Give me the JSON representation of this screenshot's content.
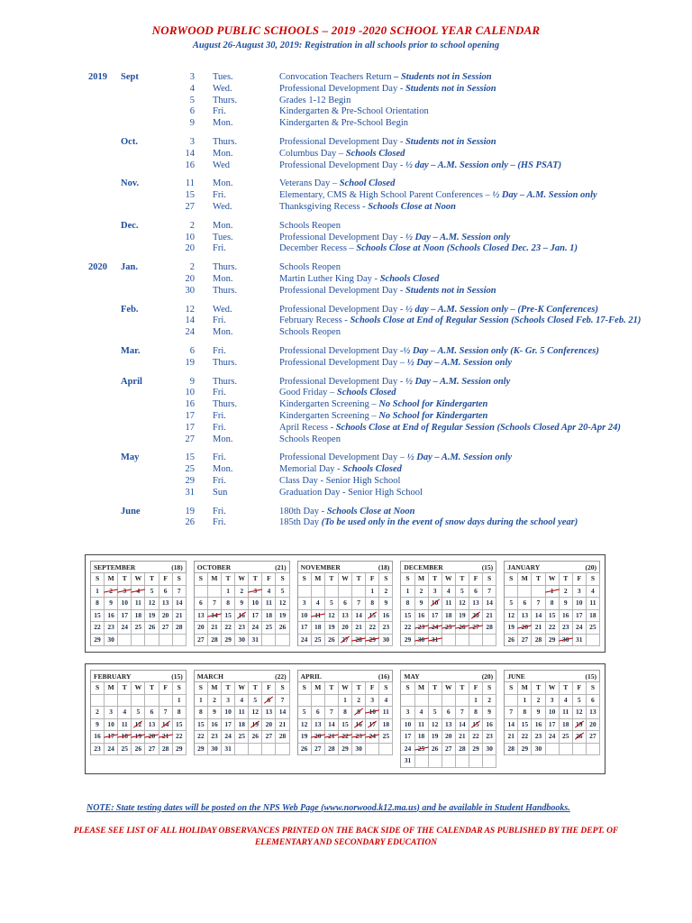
{
  "doc": {
    "title": "NORWOOD PUBLIC SCHOOLS – 2019 -2020 SCHOOL YEAR CALENDAR",
    "subtitle": "August 26-August 30, 2019:  Registration in all schools prior to school opening",
    "note": {
      "prefix": "NOTE:  State testing dates will be posted on the NPS Web Page (",
      "link": "www.norwood.k12.ma.us",
      "suffix": ") and be available in Student Handbooks."
    },
    "footer": "PLEASE SEE LIST OF ALL HOLIDAY OBSERVANCES PRINTED ON THE BACK SIDE OF THE CALENDAR AS PUBLISHED BY THE DEPT. OF ELEMENTARY AND SECONDARY EDUCATION",
    "colors": {
      "title_red": "#cc0000",
      "body_blue": "#1f4e9c",
      "mark_red": "#b30000"
    }
  },
  "schedule": [
    {
      "year": "2019",
      "month": "Sept",
      "events": [
        {
          "day": "3",
          "wd": "Tues.",
          "text": "Convocation Teachers Return ",
          "em": "– Students not in Session"
        },
        {
          "day": "4",
          "wd": "Wed.",
          "text": "Professional Development Day - ",
          "em": "Students not in Session"
        },
        {
          "day": "5",
          "wd": "Thurs.",
          "text": "Grades 1-12 Begin",
          "em": ""
        },
        {
          "day": "6",
          "wd": "Fri.",
          "text": "Kindergarten & Pre-School Orientation",
          "em": ""
        },
        {
          "day": "9",
          "wd": "Mon.",
          "text": "Kindergarten & Pre-School Begin",
          "em": ""
        }
      ]
    },
    {
      "year": "",
      "month": "Oct.",
      "events": [
        {
          "day": "3",
          "wd": "Thurs.",
          "text": "Professional Development Day - ",
          "em": "Students not in Session"
        },
        {
          "day": "14",
          "wd": "Mon.",
          "text": "Columbus Day – ",
          "em": "Schools Closed"
        },
        {
          "day": "16",
          "wd": "Wed",
          "text": "Professional Development Day - ",
          "em": "½ day – A.M. Session only – (HS PSAT)"
        }
      ]
    },
    {
      "year": "",
      "month": "Nov.",
      "events": [
        {
          "day": "11",
          "wd": "Mon.",
          "text": "Veterans Day – ",
          "em": "School Closed"
        },
        {
          "day": "15",
          "wd": "Fri.",
          "text": "Elementary, CMS & High School Parent Conferences – ",
          "em": "½ Day – A.M. Session only"
        },
        {
          "day": "27",
          "wd": "Wed.",
          "text": "Thanksgiving Recess - ",
          "em": "Schools Close at Noon"
        }
      ]
    },
    {
      "year": "",
      "month": "Dec.",
      "events": [
        {
          "day": "2",
          "wd": "Mon.",
          "text": "Schools Reopen",
          "em": ""
        },
        {
          "day": "10",
          "wd": "Tues.",
          "text": "Professional Development Day - ",
          "em": "½ Day – A.M. Session only"
        },
        {
          "day": "20",
          "wd": "Fri.",
          "text": "December Recess – ",
          "em": "Schools Close at Noon (Schools Closed Dec. 23 – Jan. 1)"
        }
      ]
    },
    {
      "year": "2020",
      "month": "Jan.",
      "events": [
        {
          "day": "2",
          "wd": "Thurs.",
          "text": "Schools Reopen",
          "em": ""
        },
        {
          "day": "20",
          "wd": "Mon.",
          "text": "Martin Luther King Day - ",
          "em": "Schools Closed"
        },
        {
          "day": "30",
          "wd": "Thurs.",
          "text": "Professional Development Day - ",
          "em": "Students not in Session"
        }
      ]
    },
    {
      "year": "",
      "month": "Feb.",
      "events": [
        {
          "day": "12",
          "wd": "Wed.",
          "text": "Professional Development Day - ",
          "em": "½ day – A.M. Session only – (Pre-K Conferences)"
        },
        {
          "day": "14",
          "wd": "Fri.",
          "text": "February Recess - ",
          "em": "Schools Close at End of Regular Session (Schools Closed Feb. 17-Feb. 21)"
        },
        {
          "day": "24",
          "wd": "Mon.",
          "text": "Schools Reopen",
          "em": ""
        }
      ]
    },
    {
      "year": "",
      "month": "Mar.",
      "events": [
        {
          "day": "6",
          "wd": "Fri.",
          "text": "Professional Development Day -",
          "em": "½ Day – A.M. Session only (K- Gr. 5 Conferences)"
        },
        {
          "day": "19",
          "wd": "Thurs.",
          "text": "Professional Development Day – ",
          "em": "½ Day – A.M. Session only"
        }
      ]
    },
    {
      "year": "",
      "month": "April",
      "events": [
        {
          "day": "9",
          "wd": "Thurs.",
          "text": "Professional Development Day - ",
          "em": "½ Day – A.M. Session only"
        },
        {
          "day": "10",
          "wd": "Fri.",
          "text": "Good Friday – ",
          "em": "Schools Closed"
        },
        {
          "day": "16",
          "wd": "Thurs.",
          "text": "Kindergarten Screening – ",
          "em": "No School for Kindergarten"
        },
        {
          "day": "17",
          "wd": "Fri.",
          "text": "Kindergarten Screening – ",
          "em": "No School for Kindergarten"
        },
        {
          "day": "17",
          "wd": "Fri.",
          "text": "April Recess - ",
          "em": "Schools Close at End of Regular Session (Schools Closed Apr 20-Apr 24)"
        },
        {
          "day": "27",
          "wd": "Mon.",
          "text": "Schools Reopen",
          "em": ""
        }
      ]
    },
    {
      "year": "",
      "month": "May",
      "events": [
        {
          "day": "15",
          "wd": "Fri.",
          "text": "Professional Development Day – ",
          "em": "½ Day – A.M. Session only"
        },
        {
          "day": "25",
          "wd": "Mon.",
          "text": "Memorial Day - ",
          "em": "Schools Closed"
        },
        {
          "day": "29",
          "wd": "Fri.",
          "text": "Class Day - Senior High School",
          "em": ""
        },
        {
          "day": "31",
          "wd": "Sun",
          "text": "Graduation Day - Senior High School",
          "em": ""
        }
      ]
    },
    {
      "year": "",
      "month": "June",
      "events": [
        {
          "day": "19",
          "wd": "Fri.",
          "text": "180th Day - ",
          "em": "Schools Close at Noon"
        },
        {
          "day": "26",
          "wd": "Fri.",
          "text": "185th Day ",
          "em": "(To be used only in the event of snow days during the school year)"
        }
      ]
    }
  ],
  "calendars": {
    "weekdays": [
      "S",
      "M",
      "T",
      "W",
      "T",
      "F",
      "S"
    ],
    "rows": [
      [
        {
          "name": "SEPTEMBER",
          "count": "(18)",
          "start": 0,
          "days": 30,
          "crossed": [
            2,
            3,
            4
          ],
          "slashed": []
        },
        {
          "name": "OCTOBER",
          "count": "(21)",
          "start": 2,
          "days": 31,
          "crossed": [
            3,
            14
          ],
          "slashed": [
            16
          ]
        },
        {
          "name": "NOVEMBER",
          "count": "(18)",
          "start": 5,
          "days": 30,
          "crossed": [
            11,
            28,
            29
          ],
          "slashed": [
            15,
            27
          ]
        },
        {
          "name": "DECEMBER",
          "count": "(15)",
          "start": 0,
          "days": 31,
          "crossed": [
            23,
            24,
            25,
            26,
            27,
            30,
            31
          ],
          "slashed": [
            10,
            20
          ]
        },
        {
          "name": "JANUARY",
          "count": "(20)",
          "start": 3,
          "days": 31,
          "crossed": [
            1,
            20,
            30
          ],
          "slashed": []
        }
      ],
      [
        {
          "name": "FEBRUARY",
          "count": "(15)",
          "start": 6,
          "days": 29,
          "crossed": [
            17,
            18,
            19,
            20,
            21
          ],
          "slashed": [
            12,
            14
          ]
        },
        {
          "name": "MARCH",
          "count": "(22)",
          "start": 0,
          "days": 31,
          "crossed": [],
          "slashed": [
            6,
            19
          ]
        },
        {
          "name": "APRIL",
          "count": "(16)",
          "start": 3,
          "days": 30,
          "crossed": [
            10,
            20,
            21,
            22,
            23,
            24
          ],
          "slashed": [
            9,
            16,
            17
          ]
        },
        {
          "name": "MAY",
          "count": "(20)",
          "start": 5,
          "days": 31,
          "crossed": [
            25
          ],
          "slashed": [
            15
          ]
        },
        {
          "name": "JUNE",
          "count": "(15)",
          "start": 1,
          "days": 30,
          "crossed": [],
          "slashed": [
            19,
            26
          ]
        }
      ]
    ]
  }
}
